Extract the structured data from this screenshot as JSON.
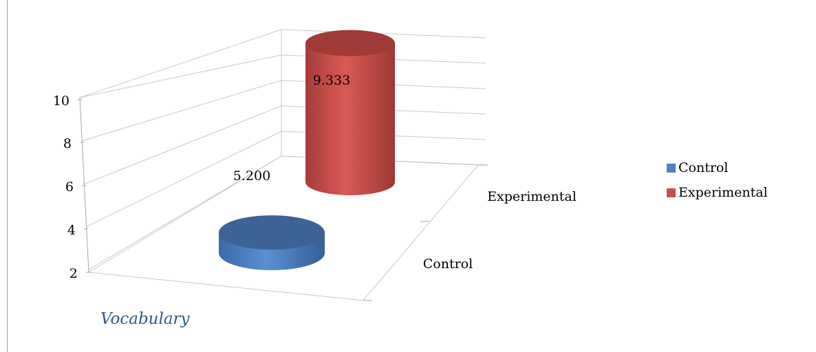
{
  "chart_data": {
    "type": "bar",
    "style": "3d-cylinder",
    "categories": [
      "Control",
      "Experimental"
    ],
    "series": [
      {
        "name": "Control",
        "values": [
          5.2,
          null
        ],
        "color": "#4f81bd"
      },
      {
        "name": "Experimental",
        "values": [
          null,
          9.333
        ],
        "color": "#c0504d"
      }
    ],
    "data_labels": [
      "5.200",
      "9.333"
    ],
    "ylim": [
      2,
      10
    ],
    "yticks": [
      "2",
      "4",
      "6",
      "8",
      "10"
    ],
    "xlabel": "Vocabulary",
    "grid": true,
    "legend_position": "right"
  }
}
